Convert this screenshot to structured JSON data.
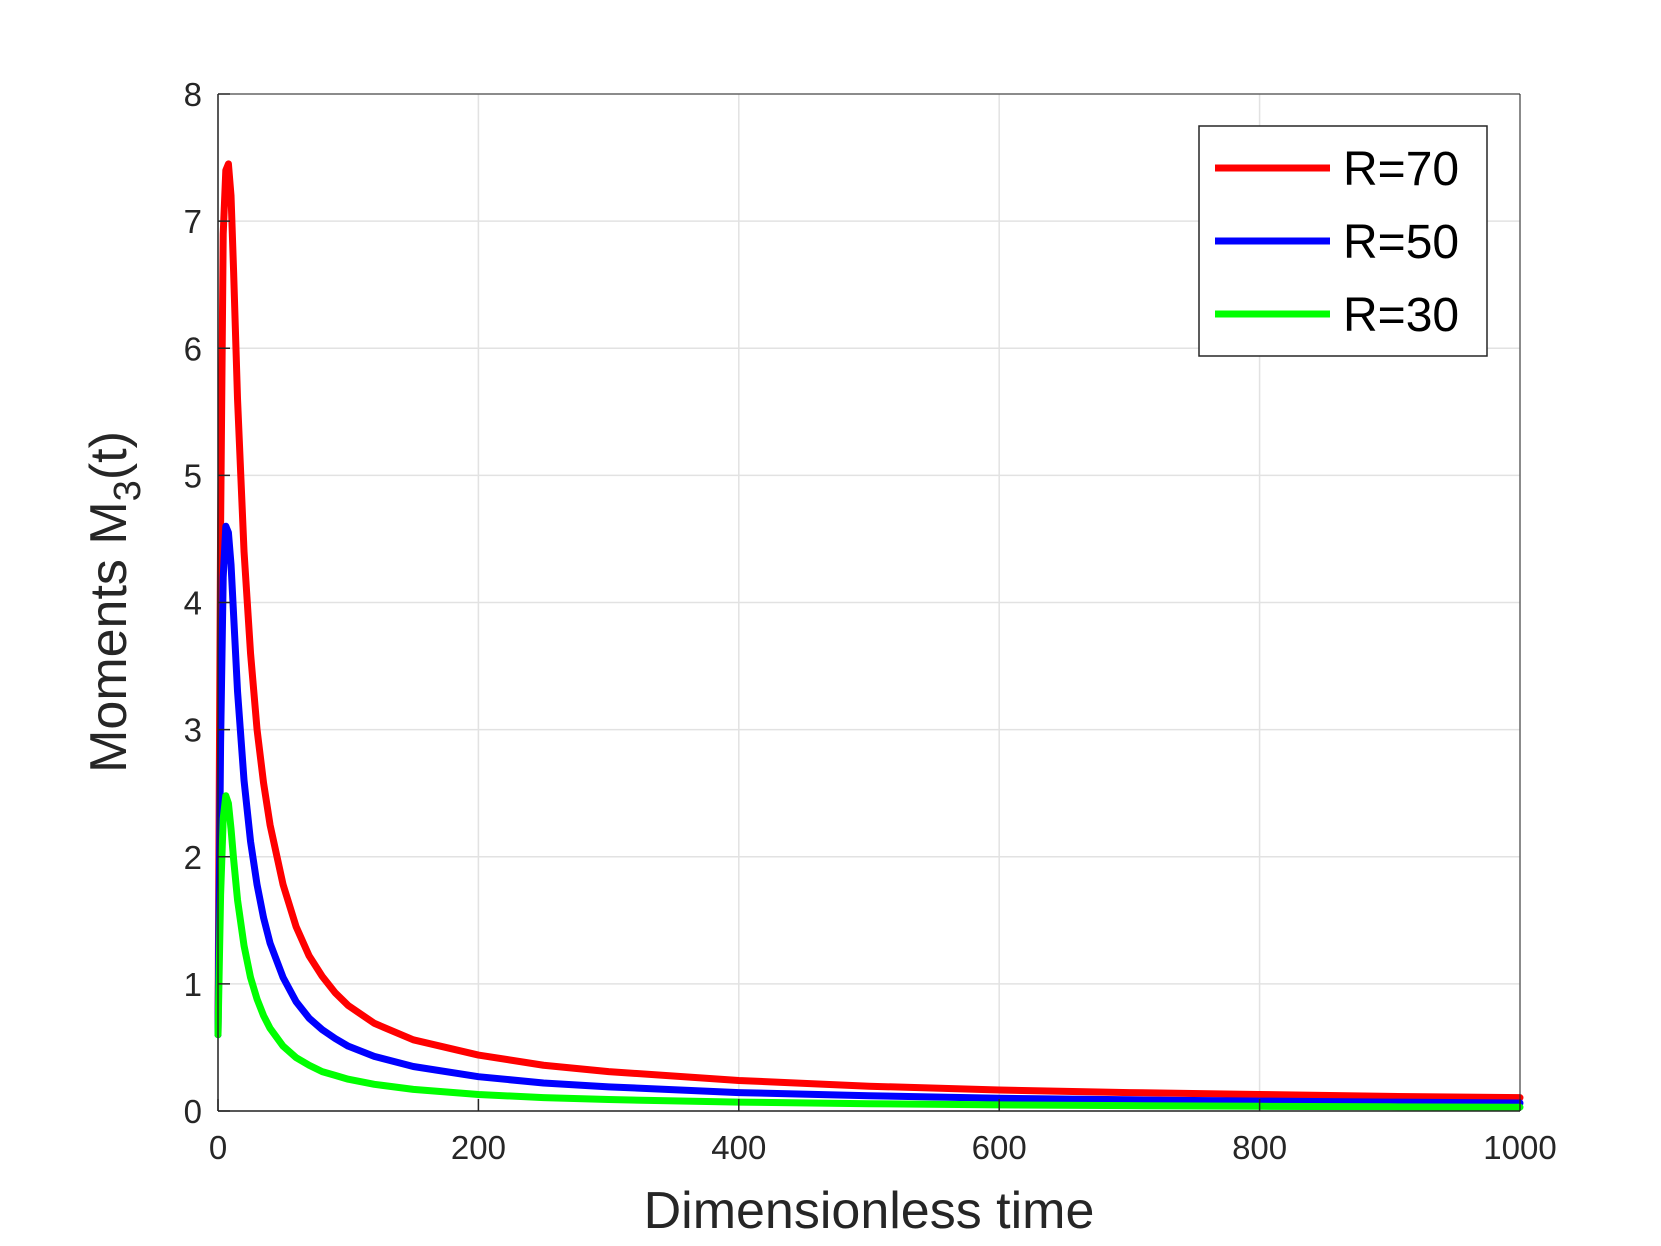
{
  "chart_data": {
    "type": "line",
    "title": "",
    "xlabel": "Dimensionless time",
    "ylabel": {
      "prefix": "Moments M",
      "subscript": "3",
      "suffix": "(t)"
    },
    "xlim": [
      0,
      1000
    ],
    "ylim": [
      0,
      8
    ],
    "xticks": [
      0,
      200,
      400,
      600,
      800,
      1000
    ],
    "yticks": [
      0,
      1,
      2,
      3,
      4,
      5,
      6,
      7,
      8
    ],
    "grid": true,
    "legend_position": "top-right",
    "series": [
      {
        "name": "R=70",
        "color": "#ff0000",
        "x": [
          0,
          2,
          4,
          6,
          8,
          10,
          12,
          15,
          20,
          25,
          30,
          35,
          40,
          50,
          60,
          70,
          80,
          90,
          100,
          120,
          150,
          200,
          250,
          300,
          400,
          500,
          600,
          700,
          800,
          900,
          1000
        ],
        "y": [
          0.6,
          4.6,
          6.9,
          7.4,
          7.45,
          7.2,
          6.6,
          5.6,
          4.4,
          3.6,
          3.0,
          2.58,
          2.25,
          1.78,
          1.45,
          1.22,
          1.06,
          0.93,
          0.83,
          0.69,
          0.56,
          0.44,
          0.36,
          0.31,
          0.24,
          0.195,
          0.165,
          0.145,
          0.13,
          0.115,
          0.105
        ]
      },
      {
        "name": "R=50",
        "color": "#0000ff",
        "x": [
          0,
          2,
          4,
          6,
          8,
          10,
          12,
          15,
          20,
          25,
          30,
          35,
          40,
          50,
          60,
          70,
          80,
          90,
          100,
          120,
          150,
          200,
          250,
          300,
          400,
          500,
          600,
          700,
          800,
          900,
          1000
        ],
        "y": [
          0.6,
          2.9,
          4.2,
          4.6,
          4.55,
          4.3,
          3.9,
          3.3,
          2.6,
          2.12,
          1.78,
          1.52,
          1.32,
          1.05,
          0.86,
          0.73,
          0.64,
          0.57,
          0.51,
          0.43,
          0.35,
          0.27,
          0.22,
          0.19,
          0.145,
          0.12,
          0.1,
          0.088,
          0.078,
          0.07,
          0.063
        ]
      },
      {
        "name": "R=30",
        "color": "#00ff00",
        "x": [
          0,
          2,
          4,
          6,
          8,
          10,
          12,
          15,
          20,
          25,
          30,
          35,
          40,
          50,
          60,
          70,
          80,
          90,
          100,
          120,
          150,
          200,
          250,
          300,
          400,
          500,
          600,
          700,
          800,
          900,
          1000
        ],
        "y": [
          0.6,
          1.7,
          2.3,
          2.48,
          2.42,
          2.22,
          1.98,
          1.66,
          1.3,
          1.05,
          0.88,
          0.75,
          0.65,
          0.51,
          0.42,
          0.36,
          0.31,
          0.28,
          0.25,
          0.21,
          0.17,
          0.13,
          0.105,
          0.09,
          0.07,
          0.057,
          0.048,
          0.042,
          0.037,
          0.033,
          0.03
        ]
      }
    ]
  }
}
